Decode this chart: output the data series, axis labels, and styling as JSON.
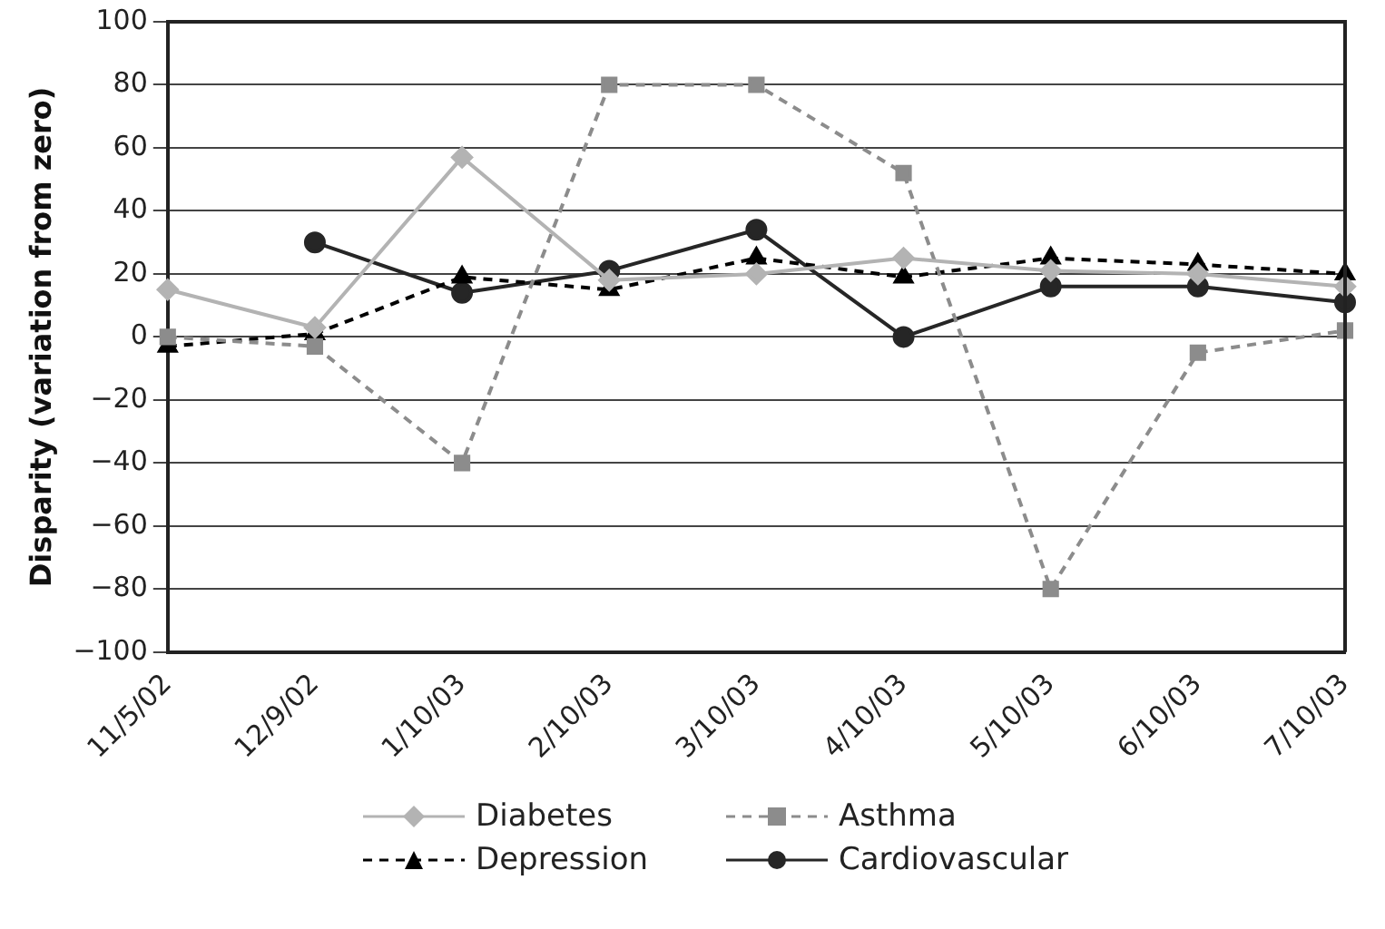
{
  "chart_data": {
    "type": "line",
    "ylabel": "Disparity (variation from zero)",
    "categories": [
      "11/5/02",
      "12/9/02",
      "1/10/03",
      "2/10/03",
      "3/10/03",
      "4/10/03",
      "5/10/03",
      "6/10/03",
      "7/10/03"
    ],
    "series": [
      {
        "name": "Diabetes",
        "color": "#b3b3b3",
        "marker": "diamond",
        "line_style": "solid",
        "values": [
          15,
          3,
          57,
          18,
          20,
          25,
          21,
          20,
          16
        ]
      },
      {
        "name": "Asthma",
        "color": "#8c8c8c",
        "marker": "square",
        "line_style": "dashed",
        "values": [
          0,
          -3,
          -40,
          80,
          80,
          52,
          -80,
          -5,
          2
        ]
      },
      {
        "name": "Depression",
        "color": "#000000",
        "marker": "triangle",
        "line_style": "dashed",
        "values": [
          -3,
          1,
          19,
          15,
          25,
          19,
          25,
          23,
          20
        ]
      },
      {
        "name": "Cardiovascular",
        "color": "#262626",
        "marker": "circle",
        "line_style": "solid",
        "values": [
          null,
          30,
          14,
          21,
          34,
          0,
          16,
          16,
          11
        ]
      }
    ],
    "ylim": [
      -100,
      100
    ],
    "yticks": [
      -100,
      -80,
      -60,
      -40,
      -20,
      0,
      20,
      40,
      60,
      80,
      100
    ],
    "grid": "y",
    "legend": "bottom"
  }
}
